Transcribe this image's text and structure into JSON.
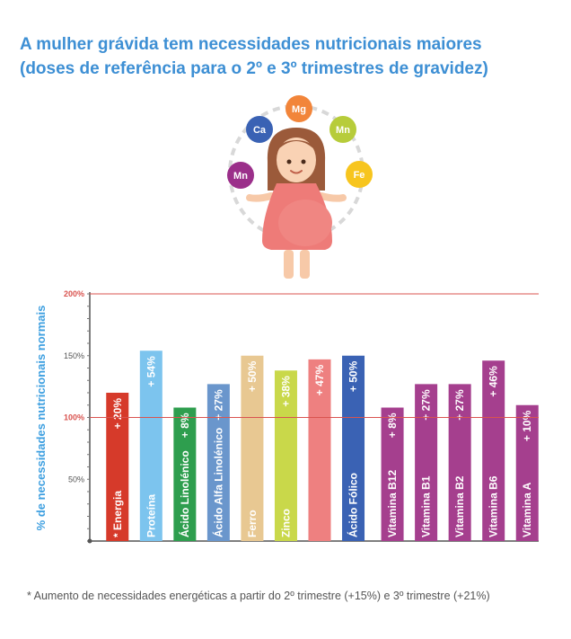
{
  "title": {
    "line1": "A mulher grávida tem necessidades nutricionais maiores",
    "line2": "(doses de referência para o 2º e 3º trimestres de gravidez)"
  },
  "illustration": {
    "minerals": [
      "Mg",
      "Ca",
      "Mn",
      "Mn",
      "Fe"
    ]
  },
  "colors": {
    "title": "#3d8fd4",
    "axis_label": "#3d9fe0",
    "reference_line": "#d9534f"
  },
  "footnote": "* Aumento de necessidades energéticas a partir do 2º trimestre (+15%) e 3º trimestre (+21%)",
  "chart_data": {
    "type": "bar",
    "ylabel": "% de necessidades nutricionais normais",
    "ylim": [
      0,
      200
    ],
    "yticks": [
      "50%",
      "100%",
      "150%",
      "200%"
    ],
    "reference_lines": [
      100,
      200
    ],
    "grid": false,
    "bars": [
      {
        "name": "* Energia",
        "value": 120,
        "label": "+ 20%",
        "color": "#d63a2a"
      },
      {
        "name": "Proteína",
        "value": 154,
        "label": "+ 54%",
        "color": "#7cc4ee"
      },
      {
        "name": "Ácido Linolénico",
        "value": 108,
        "label": "+ 8%",
        "color": "#2e9e4e"
      },
      {
        "name": "Ácido Alfa Linolénico",
        "value": 127,
        "label": "+ 27%",
        "color": "#6a96cc"
      },
      {
        "name": "Ferro",
        "value": 150,
        "label": "+ 50%",
        "color": "#e8c892"
      },
      {
        "name": "Zinco",
        "value": 138,
        "label": "+ 38%",
        "color": "#c9d84a"
      },
      {
        "name": "",
        "value": 147,
        "label": "+ 47%",
        "color": "#ee8080"
      },
      {
        "name": "Ácido Fólico",
        "value": 150,
        "label": "+ 50%",
        "color": "#3a62b4"
      },
      {
        "name": "Vitamina B12",
        "value": 108,
        "label": "+ 8%",
        "color": "#a53f8e"
      },
      {
        "name": "Vitamina B1",
        "value": 127,
        "label": "+ 27%",
        "color": "#a53f8e"
      },
      {
        "name": "Vitamina B2",
        "value": 127,
        "label": "+ 27%",
        "color": "#a53f8e"
      },
      {
        "name": "Vitamina B6",
        "value": 146,
        "label": "+ 46%",
        "color": "#a53f8e"
      },
      {
        "name": "Vitamina A",
        "value": 110,
        "label": "+ 10%",
        "color": "#a53f8e"
      }
    ]
  }
}
